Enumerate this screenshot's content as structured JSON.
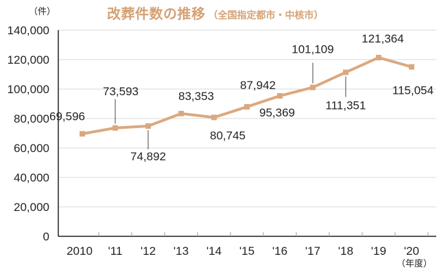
{
  "header": {
    "title_main": "改葬件数の推移",
    "title_sub": "（全国指定都市・中核市）",
    "unit_y": "（件）",
    "unit_x": "（年度）"
  },
  "colors": {
    "line": "#dba87e",
    "title": "#d4a175",
    "grid": "#d9d9d9",
    "axis": "#231f20"
  },
  "chart_data": {
    "type": "line",
    "title": "改葬件数の推移（全国指定都市・中核市）",
    "xlabel": "（年度）",
    "ylabel": "（件）",
    "categories": [
      "2010",
      "'11",
      "'12",
      "'13",
      "'14",
      "'15",
      "'16",
      "'17",
      "'18",
      "'19",
      "'20"
    ],
    "series": [
      {
        "name": "改葬件数",
        "values": [
          69596,
          73593,
          74892,
          83353,
          80745,
          87942,
          95369,
          101109,
          111351,
          121364,
          115054
        ]
      }
    ],
    "data_labels": [
      "69,596",
      "73,593",
      "74,892",
      "83,353",
      "80,745",
      "87,942",
      "95,369",
      "101,109",
      "111,351",
      "121,364",
      "115,054"
    ],
    "yticks": [
      "0",
      "20,000",
      "40,000",
      "60,000",
      "80,000",
      "100,000",
      "120,000",
      "140,000"
    ],
    "ylim": [
      0,
      140000
    ],
    "grid": true,
    "legend": "none"
  }
}
